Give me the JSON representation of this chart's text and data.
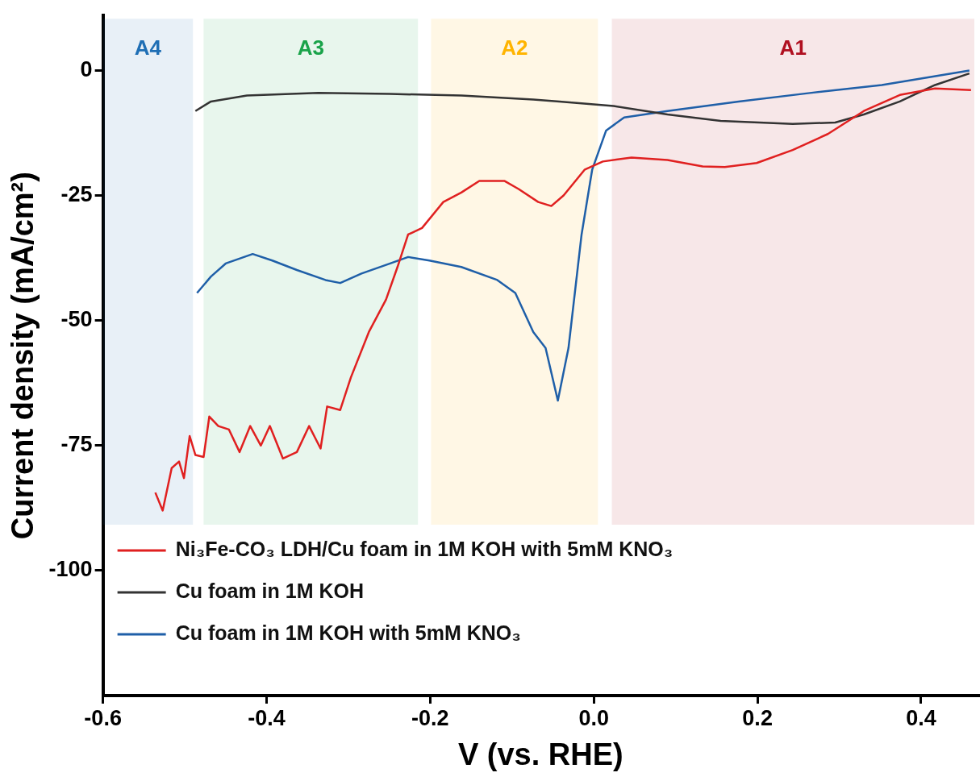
{
  "chart_data": {
    "type": "line",
    "xlabel": "V (vs. RHE)",
    "ylabel": "Current density (mA/cm²)",
    "xlim": [
      -0.6,
      0.47
    ],
    "xticks": [
      -0.6,
      -0.4,
      -0.2,
      {
        "value": 0,
        "label": "0.0"
      },
      0.2,
      0.4
    ],
    "ylim": [
      -125,
      11
    ],
    "yticks": [
      0,
      -25,
      -50,
      -75,
      -100
    ],
    "grid": false,
    "legend": "bottom",
    "marker": "none",
    "line_style": "solid",
    "bands": [
      {
        "axis": "x",
        "from": -0.6,
        "to": -0.49,
        "label": "A4",
        "color": "#1f6fb5"
      },
      {
        "axis": "x",
        "from": -0.477,
        "to": -0.215,
        "label": "A3",
        "color": "#1aa34a"
      },
      {
        "axis": "x",
        "from": -0.199,
        "to": 0.005,
        "label": "A2",
        "color": "#ffb400"
      },
      {
        "axis": "x",
        "from": 0.022,
        "to": 0.465,
        "label": "A1",
        "color": "#b01020"
      }
    ],
    "series": [
      {
        "name": "Ni₃Fe-CO₃ LDH/Cu foam in 1M KOH with 5mM KNO₃",
        "color": "#e02020",
        "x": [
          -0.536,
          -0.527,
          -0.516,
          -0.507,
          -0.501,
          -0.494,
          -0.487,
          -0.477,
          -0.47,
          -0.459,
          -0.446,
          -0.433,
          -0.42,
          -0.407,
          -0.396,
          -0.38,
          -0.363,
          -0.348,
          -0.334,
          -0.326,
          -0.31,
          -0.297,
          -0.275,
          -0.254,
          -0.24,
          -0.227,
          -0.21,
          -0.184,
          -0.162,
          -0.14,
          -0.109,
          -0.092,
          -0.068,
          -0.052,
          -0.037,
          -0.011,
          0.011,
          0.046,
          0.09,
          0.133,
          0.16,
          0.199,
          0.243,
          0.286,
          0.33,
          0.374,
          0.417,
          0.461
        ],
        "values": [
          -84.4,
          -88,
          -79.5,
          -78.2,
          -81.5,
          -73.1,
          -76.9,
          -77.3,
          -69.2,
          -71.1,
          -71.8,
          -76.3,
          -71.1,
          -75,
          -71.1,
          -77.6,
          -76.3,
          -71.1,
          -75.6,
          -67.2,
          -67.9,
          -61.4,
          -52.3,
          -45.8,
          -39.3,
          -32.8,
          -31.5,
          -26.3,
          -24.4,
          -22.1,
          -22.1,
          -23.7,
          -26.3,
          -27.1,
          -25,
          -19.8,
          -18.2,
          -17.4,
          -17.9,
          -19.2,
          -19.3,
          -18.5,
          -15.9,
          -12.7,
          -8.1,
          -4.9,
          -3.6,
          -3.9
        ]
      },
      {
        "name": "Cu foam in 1M KOH",
        "color": "#333333",
        "x": [
          -0.487,
          -0.468,
          -0.424,
          -0.337,
          -0.249,
          -0.162,
          -0.074,
          -0.042,
          0.024,
          0.09,
          0.155,
          0.243,
          0.295,
          0.33,
          0.374,
          0.417,
          0.459
        ],
        "values": [
          -8.1,
          -6.2,
          -5,
          -4.5,
          -4.7,
          -5,
          -5.8,
          -6.2,
          -7.1,
          -8.8,
          -10.1,
          -10.7,
          -10.4,
          -8.8,
          -6.2,
          -2.9,
          -0.6
        ]
      },
      {
        "name": "Cu foam in 1M KOH with 5mM KNO₃",
        "color": "#1f5fa8",
        "x": [
          -0.485,
          -0.468,
          -0.45,
          -0.417,
          -0.393,
          -0.363,
          -0.328,
          -0.31,
          -0.284,
          -0.249,
          -0.227,
          -0.201,
          -0.162,
          -0.118,
          -0.096,
          -0.074,
          -0.059,
          -0.044,
          -0.031,
          -0.015,
          -0.002,
          0.015,
          0.037,
          0.09,
          0.177,
          0.264,
          0.352,
          0.459
        ],
        "values": [
          -44.5,
          -41.2,
          -38.6,
          -36.7,
          -38,
          -39.9,
          -41.9,
          -42.5,
          -40.6,
          -38.6,
          -37.3,
          -38,
          -39.3,
          -41.9,
          -44.5,
          -52.3,
          -55.5,
          -66,
          -55.5,
          -32.8,
          -19.8,
          -12,
          -9.4,
          -8.1,
          -6.2,
          -4.5,
          -2.9,
          0
        ]
      }
    ]
  }
}
